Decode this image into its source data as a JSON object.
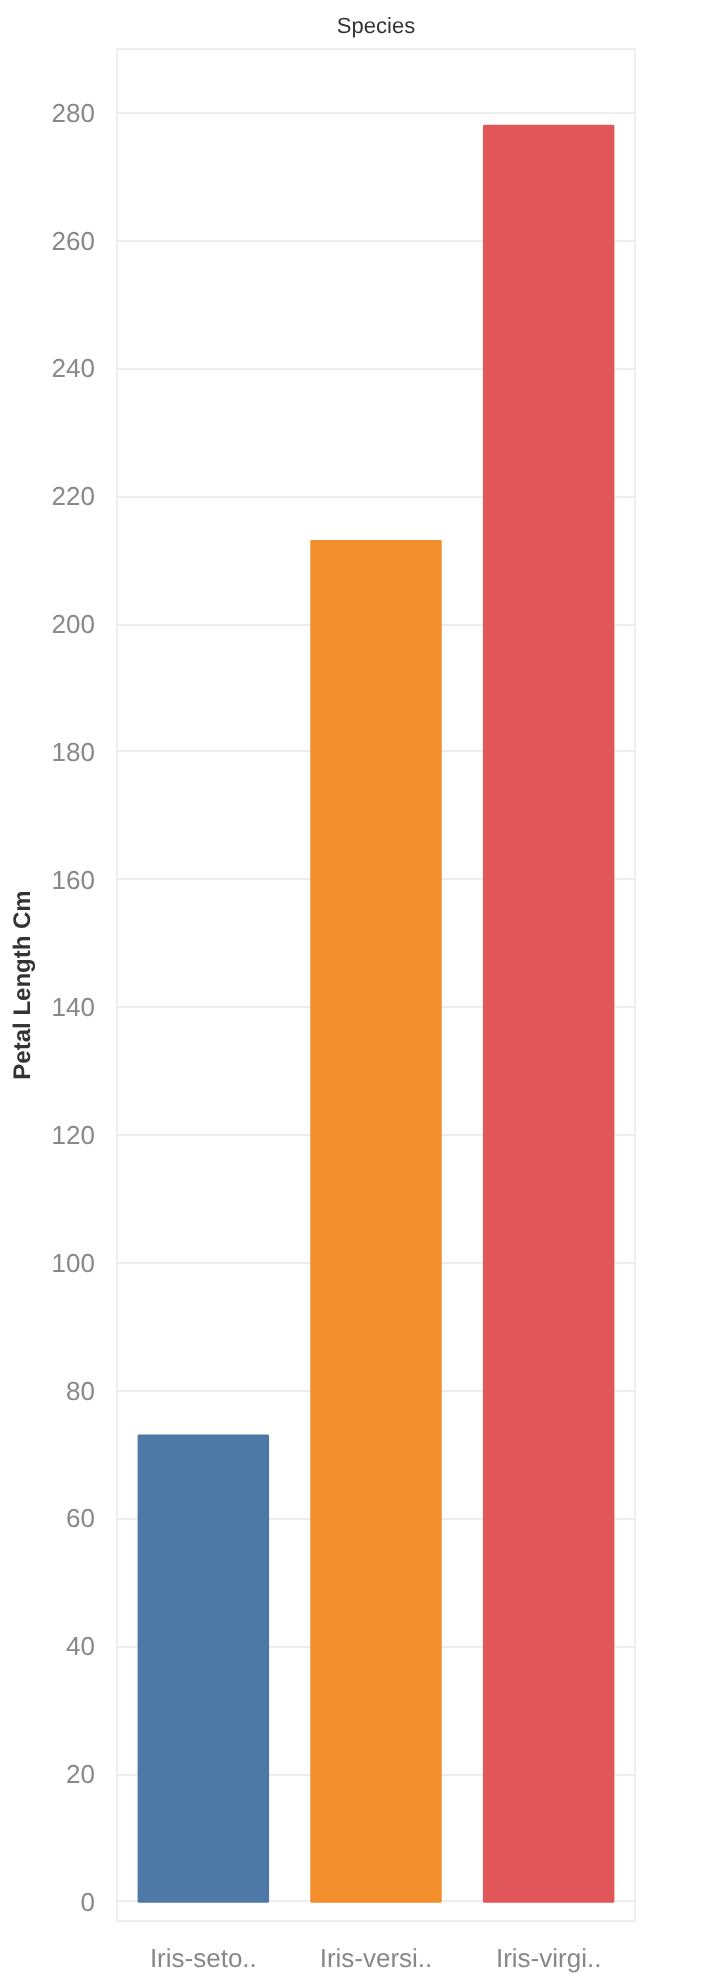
{
  "chart_data": {
    "type": "bar",
    "title": "Species",
    "ylabel": "Petal Length Cm",
    "categories": [
      "Iris-seto..",
      "Iris-versi..",
      "Iris-virgi.."
    ],
    "values": [
      73,
      213,
      278
    ],
    "colors": [
      "#4e79a7",
      "#f28e2b",
      "#e15759"
    ],
    "ylim": [
      -3,
      290
    ],
    "yticks": [
      0,
      20,
      40,
      60,
      80,
      100,
      120,
      140,
      160,
      180,
      200,
      220,
      240,
      260,
      280
    ],
    "grid": "y"
  }
}
